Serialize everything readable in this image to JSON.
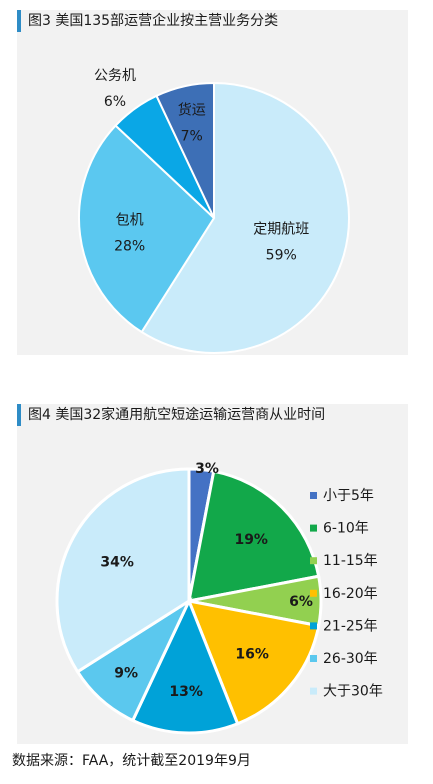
{
  "figure1": {
    "title": "图3 美国135部运营企业按主营业务分类",
    "chart_data": {
      "type": "pie",
      "title": "图3 美国135部运营企业按主营业务分类",
      "slices": [
        {
          "name": "定期航班",
          "value": 59,
          "label": "59%",
          "color": "#c9ebfa"
        },
        {
          "name": "包机",
          "value": 28,
          "label": "28%",
          "color": "#5bc8f0"
        },
        {
          "name": "公务机",
          "value": 6,
          "label": "6%",
          "color": "#0aa7e6"
        },
        {
          "name": "货运",
          "value": 7,
          "label": "7%",
          "color": "#3d6fb6"
        }
      ]
    }
  },
  "figure2": {
    "title": "图4 美国32家通用航空短途运输运营商从业时间",
    "chart_data": {
      "type": "pie",
      "title": "图4 美国32家通用航空短途运输运营商从业时间",
      "slices": [
        {
          "name": "小于5年",
          "value": 3,
          "label": "3%",
          "color": "#4472c4"
        },
        {
          "name": "6-10年",
          "value": 19,
          "label": "19%",
          "color": "#12a84a"
        },
        {
          "name": "11-15年",
          "value": 6,
          "label": "6%",
          "color": "#92d050"
        },
        {
          "name": "16-20年",
          "value": 16,
          "label": "16%",
          "color": "#ffc000"
        },
        {
          "name": "21-25年",
          "value": 13,
          "label": "13%",
          "color": "#00a2d8"
        },
        {
          "name": "26-30年",
          "value": 9,
          "label": "9%",
          "color": "#5bc8ee"
        },
        {
          "name": "大于30年",
          "value": 34,
          "label": "34%",
          "color": "#c9ebfa"
        }
      ],
      "legend_position": "right"
    }
  },
  "source": "数据来源：FAA，统计截至2019年9月"
}
